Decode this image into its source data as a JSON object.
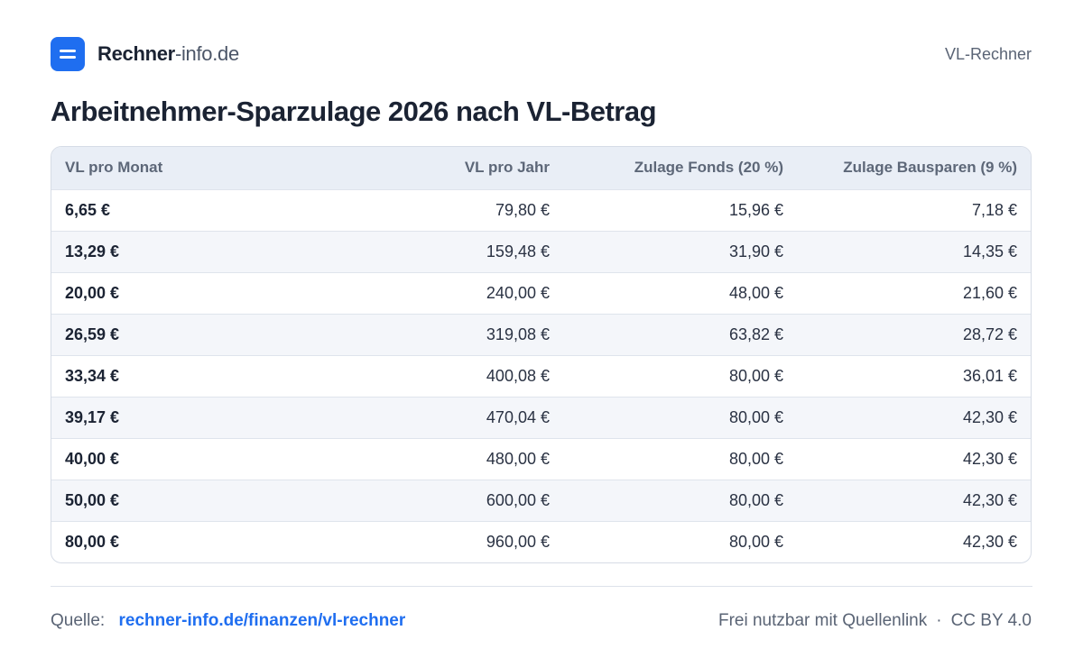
{
  "header": {
    "brand_name": "Rechner",
    "brand_suffix": "-info.de",
    "page_label": "VL-Rechner",
    "logo_color": "#1f6ef0"
  },
  "title": "Arbeitnehmer-Sparzulage 2026 nach VL-Betrag",
  "table": {
    "columns": [
      "VL pro Monat",
      "VL pro Jahr",
      "Zulage Fonds (20 %)",
      "Zulage Bausparen (9 %)"
    ],
    "rows": [
      [
        "6,65 €",
        "79,80 €",
        "15,96 €",
        "7,18 €"
      ],
      [
        "13,29 €",
        "159,48 €",
        "31,90 €",
        "14,35 €"
      ],
      [
        "20,00 €",
        "240,00 €",
        "48,00 €",
        "21,60 €"
      ],
      [
        "26,59 €",
        "319,08 €",
        "63,82 €",
        "28,72 €"
      ],
      [
        "33,34 €",
        "400,08 €",
        "80,00 €",
        "36,01 €"
      ],
      [
        "39,17 €",
        "470,04 €",
        "80,00 €",
        "42,30 €"
      ],
      [
        "40,00 €",
        "480,00 €",
        "80,00 €",
        "42,30 €"
      ],
      [
        "50,00 €",
        "600,00 €",
        "80,00 €",
        "42,30 €"
      ],
      [
        "80,00 €",
        "960,00 €",
        "80,00 €",
        "42,30 €"
      ]
    ]
  },
  "footer": {
    "source_label": "Quelle:",
    "source_link": "rechner-info.de/finanzen/vl-rechner",
    "usage_note": "Frei nutzbar mit Quellenlink",
    "separator": "·",
    "license": "CC BY 4.0"
  }
}
